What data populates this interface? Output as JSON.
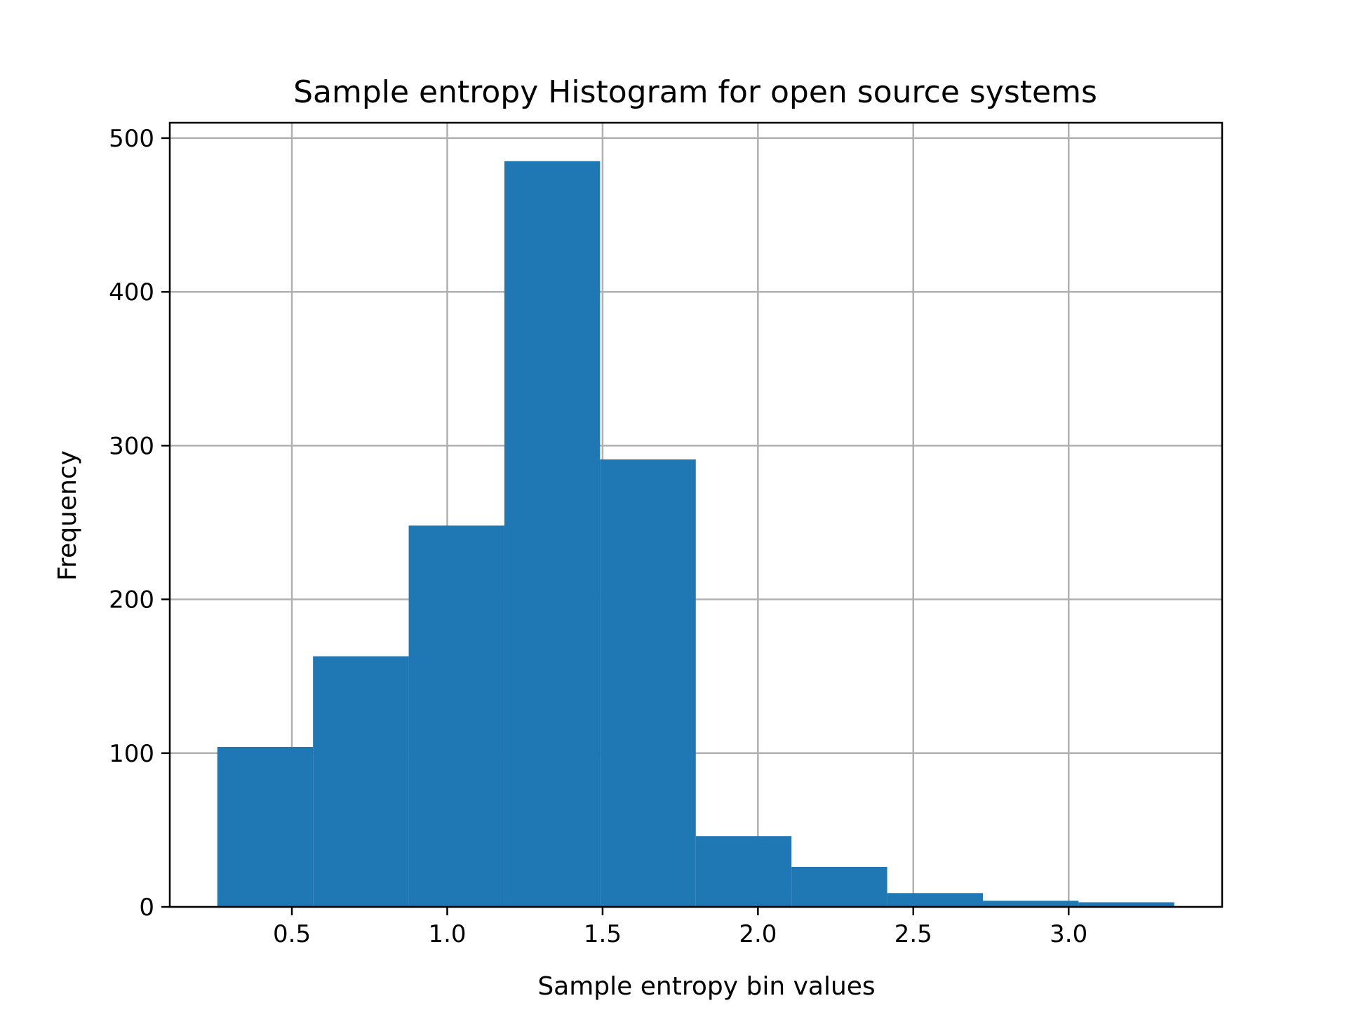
{
  "chart_data": {
    "type": "bar",
    "title": "Sample entropy Histogram for open source systems",
    "xlabel": "Sample entropy bin values",
    "ylabel": "Frequency",
    "bin_edges": [
      0.26,
      0.568,
      0.876,
      1.184,
      1.492,
      1.8,
      2.108,
      2.416,
      2.724,
      3.032,
      3.34
    ],
    "values": [
      104,
      163,
      248,
      485,
      291,
      46,
      26,
      9,
      4,
      3
    ],
    "xlim": [
      0.107,
      3.494
    ],
    "ylim": [
      0,
      510
    ],
    "xticks": [
      0.5,
      1.0,
      1.5,
      2.0,
      2.5,
      3.0
    ],
    "xtick_labels": [
      "0.5",
      "1.0",
      "1.5",
      "2.0",
      "2.5",
      "3.0"
    ],
    "yticks": [
      0,
      100,
      200,
      300,
      400,
      500
    ],
    "ytick_labels": [
      "0",
      "100",
      "200",
      "300",
      "400",
      "500"
    ],
    "grid": true,
    "bar_color": "#1f77b4",
    "grid_color": "#b0b0b0"
  }
}
